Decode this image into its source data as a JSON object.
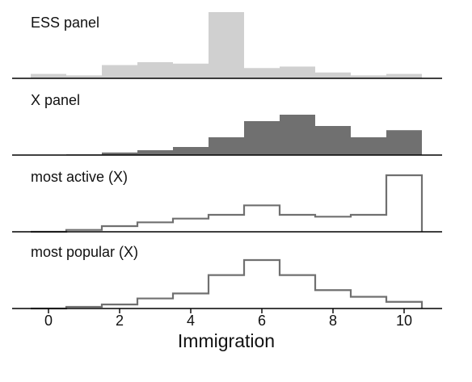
{
  "chart_data": {
    "type": "histogram",
    "xlabel": "Immigration",
    "x_ticks": [
      0,
      2,
      4,
      6,
      8,
      10
    ],
    "xlim": [
      -1,
      11
    ],
    "bin_edges": [
      -0.5,
      0.5,
      1.5,
      2.5,
      3.5,
      4.5,
      5.5,
      6.5,
      7.5,
      8.5,
      9.5,
      10.5
    ],
    "panels": [
      {
        "name": "ESS panel",
        "style": "filled",
        "color": "#d0d0d0",
        "values": [
          0.015,
          0.01,
          0.045,
          0.055,
          0.05,
          0.225,
          0.035,
          0.04,
          0.02,
          0.01,
          0.015
        ]
      },
      {
        "name": "X panel",
        "style": "filled",
        "color": "#707070",
        "values": [
          0.0,
          0.002,
          0.008,
          0.015,
          0.025,
          0.055,
          0.105,
          0.125,
          0.09,
          0.055,
          0.077
        ]
      },
      {
        "name": "most active (X)",
        "style": "step",
        "color": "#707070",
        "values": [
          0.0,
          0.005,
          0.015,
          0.025,
          0.035,
          0.045,
          0.07,
          0.045,
          0.04,
          0.045,
          0.15
        ]
      },
      {
        "name": "most popular (X)",
        "style": "step",
        "color": "#707070",
        "values": [
          0.0,
          0.005,
          0.012,
          0.03,
          0.045,
          0.1,
          0.145,
          0.1,
          0.055,
          0.035,
          0.02
        ]
      }
    ]
  }
}
